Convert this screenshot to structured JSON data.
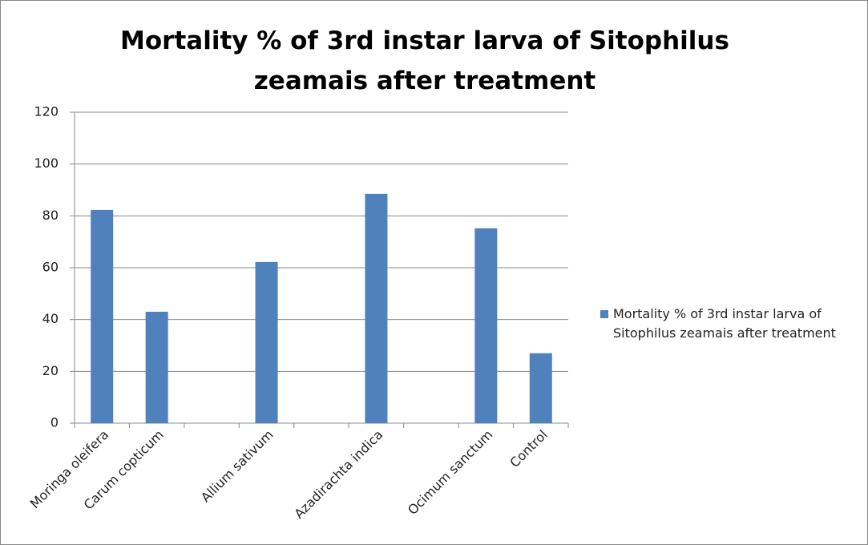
{
  "chart_data": {
    "type": "bar",
    "title": "Mortality % of 3rd instar larva of  Sitophilus zeamais after treatment",
    "categories": [
      "Moringa oleifera",
      "Carum copticum",
      null,
      "Allium sativum",
      null,
      "Azadirachta indica",
      null,
      "Ocimum sanctum",
      "Control"
    ],
    "series": [
      {
        "name": "Mortality % of 3rd instar larva of Sitophilus zeamais after treatment",
        "color": "#4f81bd",
        "values": [
          82.3,
          43,
          null,
          62.2,
          null,
          88.5,
          null,
          75.2,
          27
        ]
      }
    ],
    "ylim": [
      0,
      120
    ],
    "yticks": [
      0,
      20,
      40,
      60,
      80,
      100,
      120
    ],
    "grid": true,
    "legend": "right"
  }
}
